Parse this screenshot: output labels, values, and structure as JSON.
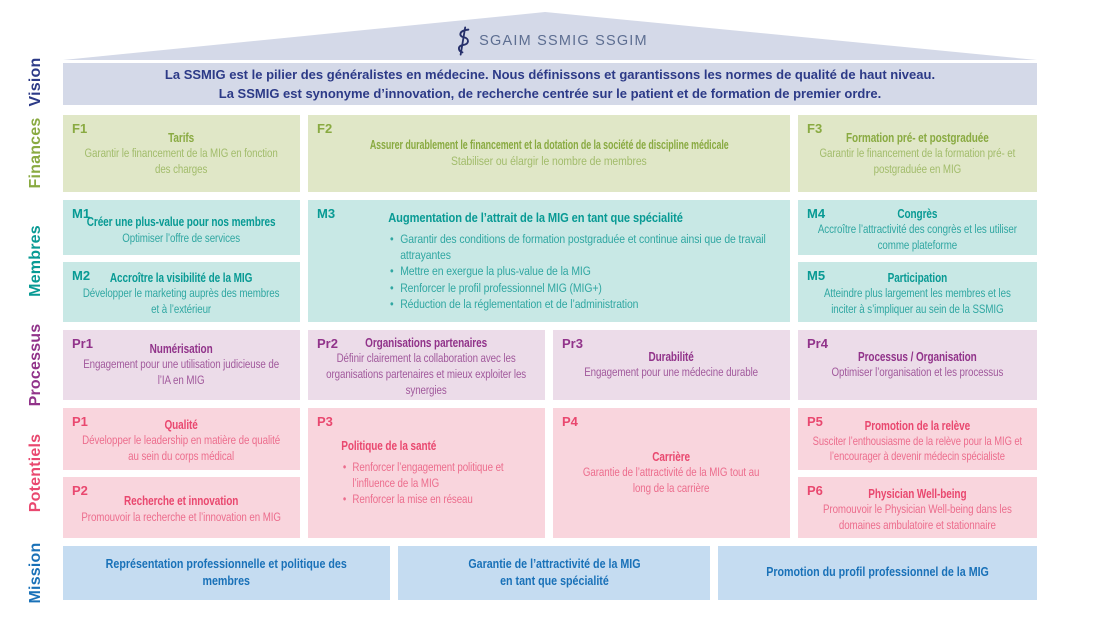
{
  "logo": {
    "text": "SGAIM SSMIG SSGIM",
    "icon": "caduceus-icon"
  },
  "vision": {
    "label": "Vision",
    "line1": "La SSMIG est le pilier des généralistes en médecine. Nous définissons et garantissons les normes de qualité de haut niveau.",
    "line2": "La SSMIG est synonyme d’innovation, de recherche centrée sur le patient et de formation de premier ordre."
  },
  "finances": {
    "label": "Finances",
    "f1": {
      "id": "F1",
      "title": "Tarifs",
      "body": "Garantir le financement de la MIG en fonction des charges"
    },
    "f2": {
      "id": "F2",
      "title": "Assurer durablement le financement et la dotation de la société de discipline médicale",
      "body": "Stabiliser ou élargir le nombre de membres"
    },
    "f3": {
      "id": "F3",
      "title": "Formation pré- et postgraduée",
      "body": "Garantir le financement de la formation pré- et postgraduée en MIG"
    }
  },
  "membres": {
    "label": "Membres",
    "m1": {
      "id": "M1",
      "title": "Créer une plus-value pour nos membres",
      "body": "Optimiser l’offre de services"
    },
    "m2": {
      "id": "M2",
      "title": "Accroître la visibilité de la MIG",
      "body": "Développer le marketing auprès des membres et à l’extérieur"
    },
    "m3": {
      "id": "M3",
      "title": "Augmentation de l’attrait de la MIG en tant que spécialité",
      "bullets": [
        "Garantir des conditions de formation postgraduée et continue ainsi que de travail attrayantes",
        "Mettre en exergue la plus-value de la MIG",
        "Renforcer le profil professionnel MIG (MIG+)",
        "Réduction de la réglementation et de l’administration"
      ]
    },
    "m4": {
      "id": "M4",
      "title": "Congrès",
      "body": "Accroître l’attractivité des congrès et les utiliser comme plateforme"
    },
    "m5": {
      "id": "M5",
      "title": "Participation",
      "body": "Atteindre plus largement les membres et les inciter à s’impliquer au sein de la SSMIG"
    }
  },
  "processus": {
    "label": "Processus",
    "pr1": {
      "id": "Pr1",
      "title": "Numérisation",
      "body": "Engagement pour une utilisation judicieuse de l’IA en MIG"
    },
    "pr2": {
      "id": "Pr2",
      "title": "Organisations partenaires",
      "body": "Définir clairement la collaboration avec les organisations partenaires et mieux exploiter les synergies"
    },
    "pr3": {
      "id": "Pr3",
      "title": "Durabilité",
      "body": "Engagement pour une médecine durable"
    },
    "pr4": {
      "id": "Pr4",
      "title": "Processus / Organisation",
      "body": "Optimiser l’organisation et les processus"
    }
  },
  "potentiels": {
    "label": "Potentiels",
    "p1": {
      "id": "P1",
      "title": "Qualité",
      "body": "Développer le leadership en matière de qualité au sein du corps médical"
    },
    "p2": {
      "id": "P2",
      "title": "Recherche et innovation",
      "body": "Promouvoir la recherche et l’innovation en MIG"
    },
    "p3": {
      "id": "P3",
      "title": "Politique de la santé",
      "bullets": [
        "Renforcer l’engagement politique et l’influence de la MIG",
        "Renforcer la mise en réseau"
      ]
    },
    "p4": {
      "id": "P4",
      "title": "Carrière",
      "body": "Garantie de l’attractivité de la MIG tout au long de la carrière"
    },
    "p5": {
      "id": "P5",
      "title": "Promotion de la relève",
      "body": "Susciter l’enthousiasme de la relève pour la MIG et l’encourager à devenir médecin spécialiste"
    },
    "p6": {
      "id": "P6",
      "title": "Physician Well-being",
      "body": "Promouvoir le Physician Well-being dans les domaines ambulatoire et stationnaire"
    }
  },
  "mission": {
    "label": "Mission",
    "b1": {
      "text": "Représentation professionnelle et politique des membres"
    },
    "b2": {
      "line1": "Garantie de l’attractivité de la MIG",
      "line2": "en tant que spécialité"
    },
    "b3": {
      "text": "Promotion du profil professionnel de la MIG"
    }
  },
  "colors": {
    "lavender_bg": "#d4d9e8",
    "vision_text": "#2c3a87",
    "finances_bg": "#e0e7c7",
    "finances_text": "#89aa41",
    "membres_bg": "#c8e8e5",
    "membres_text": "#089a94",
    "processus_bg": "#ecdce9",
    "processus_text": "#91338a",
    "potentiels_bg": "#f9d5dd",
    "potentiels_text": "#e9486f",
    "mission_bg": "#c5dcf1",
    "mission_text": "#1971b8",
    "logo_text": "#5d6e91",
    "logo_icon": "#26306b"
  }
}
